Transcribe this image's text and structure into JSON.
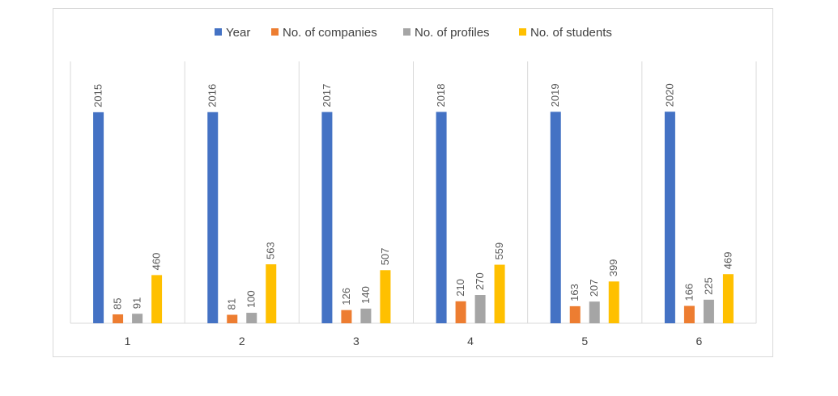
{
  "chart_data": {
    "type": "bar",
    "categories": [
      "1",
      "2",
      "3",
      "4",
      "5",
      "6"
    ],
    "series": [
      {
        "name": "Year",
        "color": "#4472C4",
        "values": [
          2015,
          2016,
          2017,
          2018,
          2019,
          2020
        ]
      },
      {
        "name": "No. of companies",
        "color": "#ED7D31",
        "values": [
          85,
          81,
          126,
          210,
          163,
          166
        ]
      },
      {
        "name": "No. of profiles",
        "color": "#A5A5A5",
        "values": [
          91,
          100,
          140,
          270,
          207,
          225
        ]
      },
      {
        "name": "No. of students",
        "color": "#FFC000",
        "values": [
          460,
          563,
          507,
          559,
          399,
          469
        ]
      }
    ],
    "title": "",
    "xlabel": "",
    "ylabel": "",
    "ylim": [
      0,
      2500
    ],
    "grid": "vertical category separators",
    "legend": "top-center",
    "data_labels": "rotated, above bars"
  }
}
